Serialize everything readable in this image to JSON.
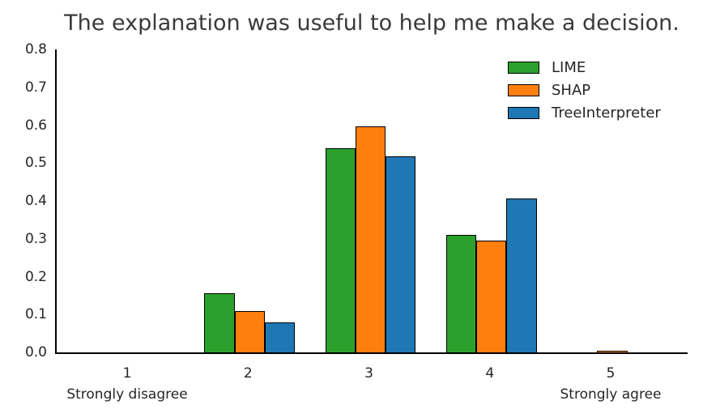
{
  "chart_data": {
    "type": "bar",
    "title": "The explanation was useful to help me make a decision.",
    "categories": [
      "1",
      "2",
      "3",
      "4",
      "5"
    ],
    "x_sublabels": [
      "Strongly disagree",
      "",
      "",
      "",
      "Strongly agree"
    ],
    "series": [
      {
        "name": "LIME",
        "color": "#2ca02c",
        "values": [
          0,
          0.157,
          0.539,
          0.31,
          0
        ]
      },
      {
        "name": "SHAP",
        "color": "#ff7f0e",
        "values": [
          0,
          0.11,
          0.596,
          0.296,
          0.004
        ]
      },
      {
        "name": "TreeInterpreter",
        "color": "#1f77b4",
        "values": [
          0,
          0.08,
          0.517,
          0.407,
          0
        ]
      }
    ],
    "ylim": [
      0,
      0.8
    ],
    "ytick_labels": [
      "0.0",
      "0.1",
      "0.2",
      "0.3",
      "0.4",
      "0.5",
      "0.6",
      "0.7",
      "0.8"
    ],
    "xlabel": "",
    "ylabel": "",
    "grid": false,
    "legend_position": "upper right",
    "bar_edge_color": "#000000",
    "background_color": "#ffffff"
  }
}
